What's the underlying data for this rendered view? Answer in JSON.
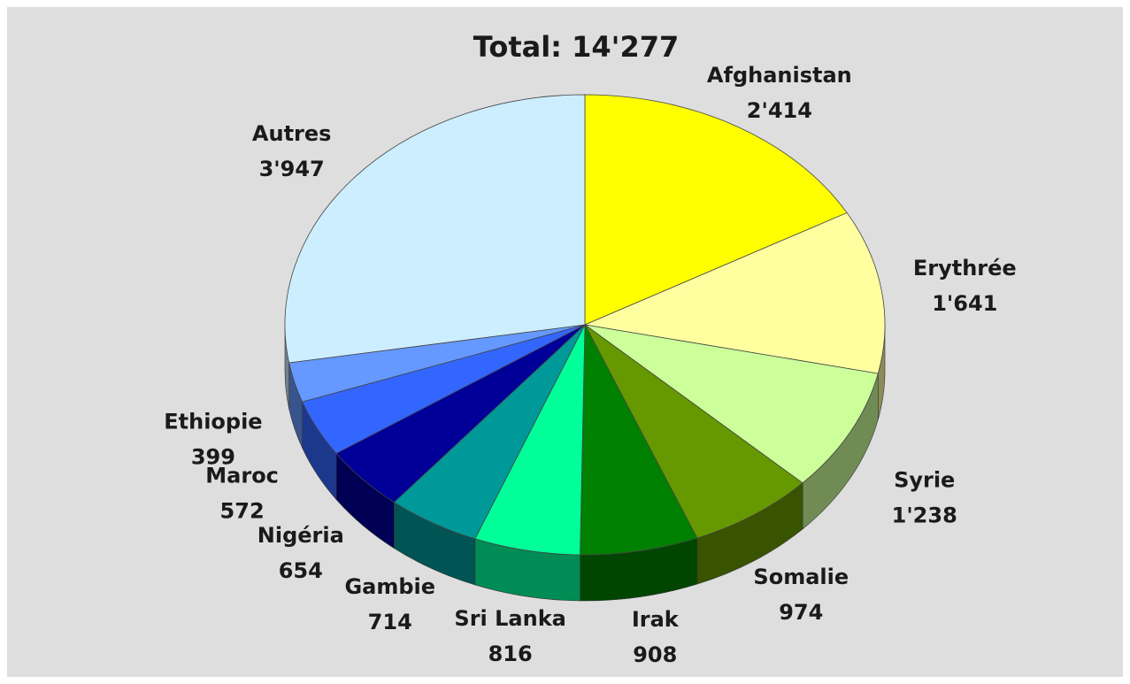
{
  "chart_data": {
    "type": "pie",
    "title": "Total: 14'277",
    "categories": [
      "Afghanistan",
      "Erythrée",
      "Syrie",
      "Somalie",
      "Irak",
      "Sri Lanka",
      "Gambie",
      "Nigéria",
      "Maroc",
      "Ethiopie",
      "Autres"
    ],
    "values": [
      2414,
      1641,
      1238,
      974,
      908,
      816,
      714,
      654,
      572,
      399,
      3947
    ],
    "value_labels": [
      "2'414",
      "1'641",
      "1'238",
      "974",
      "908",
      "816",
      "714",
      "654",
      "572",
      "399",
      "3'947"
    ],
    "colors": [
      "#ffff00",
      "#ffffa0",
      "#ccff99",
      "#669900",
      "#008000",
      "#00ff99",
      "#009999",
      "#000099",
      "#3366ff",
      "#6699ff",
      "#cceeff"
    ]
  }
}
